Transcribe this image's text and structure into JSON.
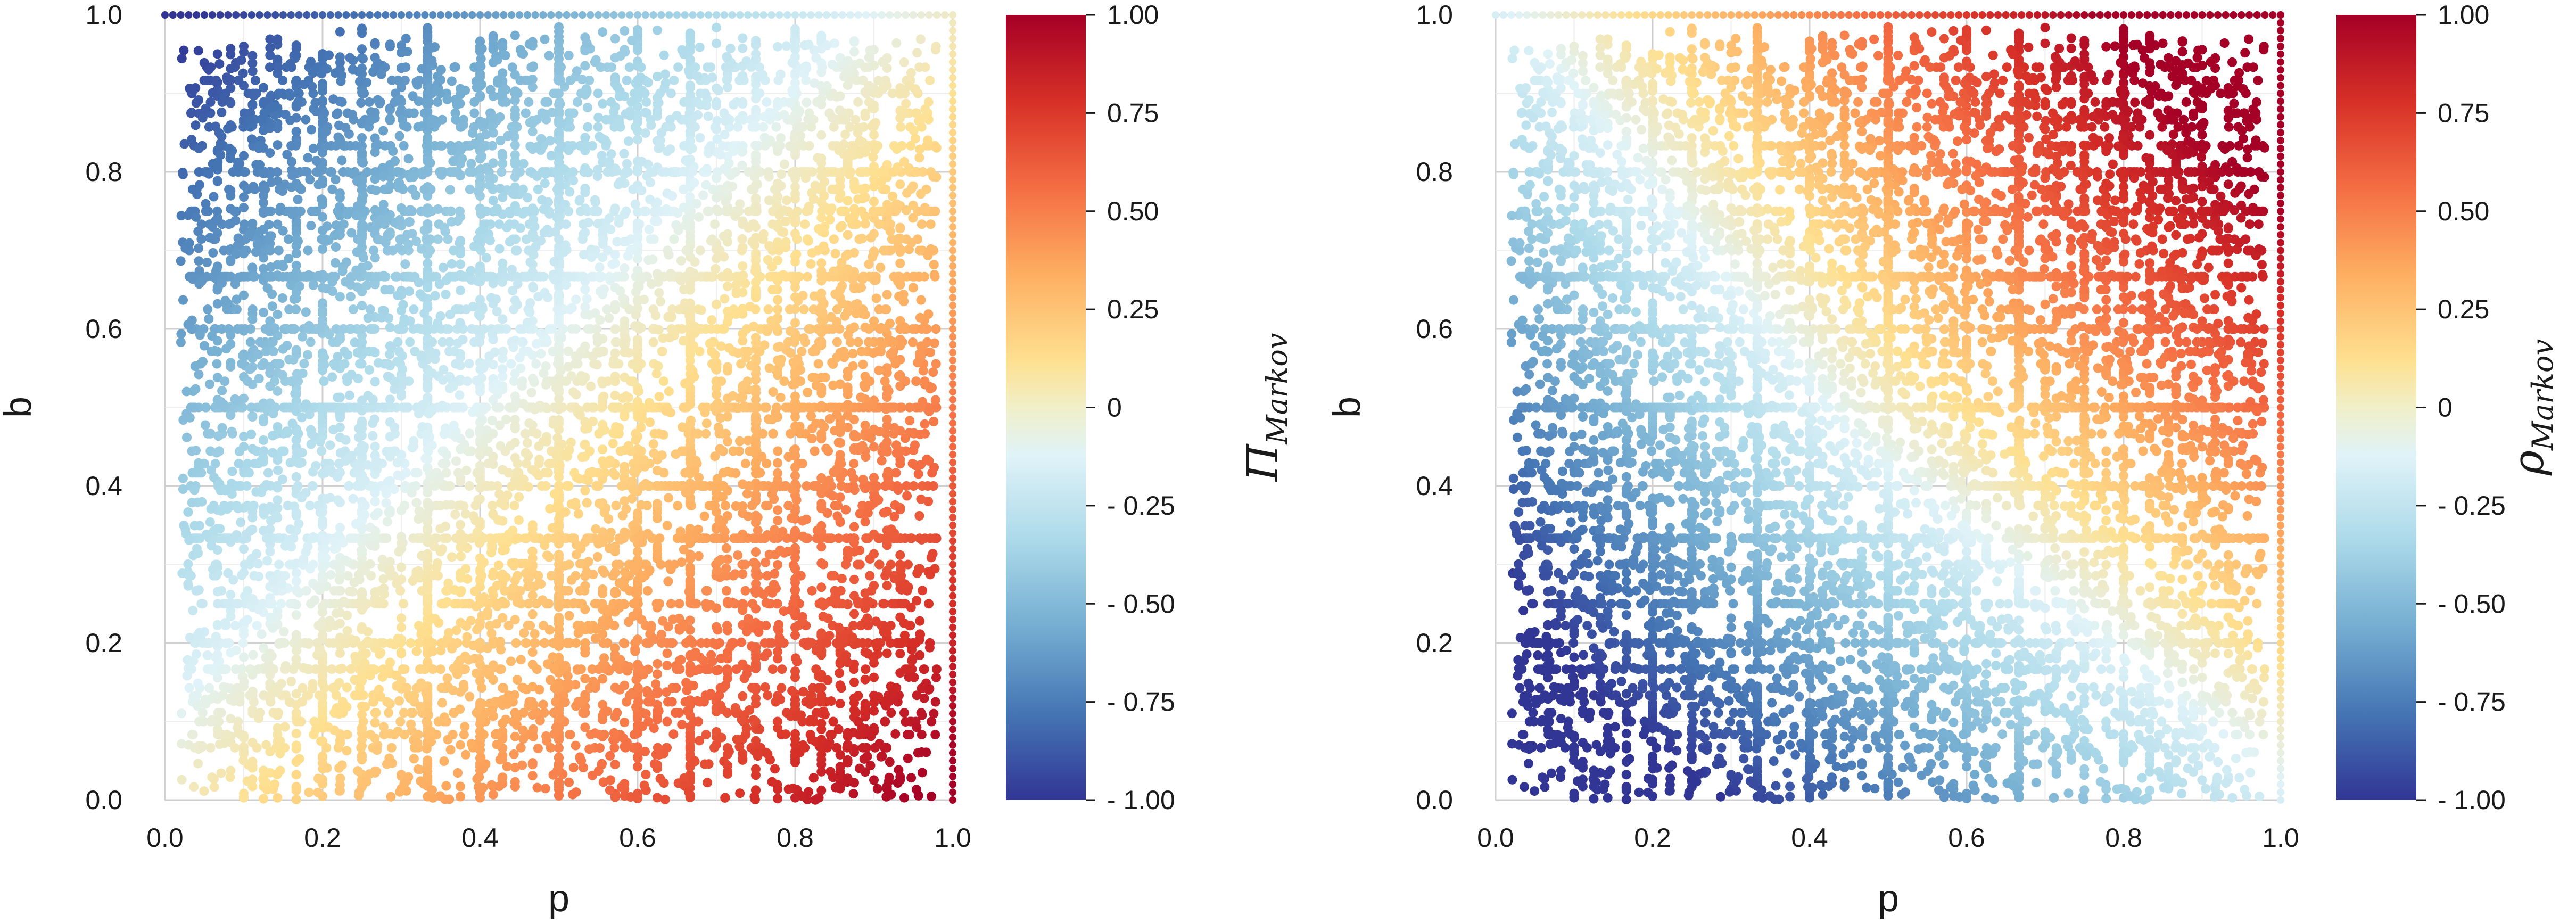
{
  "chart_data": [
    {
      "type": "scatter",
      "title": "",
      "xlabel": "p",
      "ylabel": "b",
      "xlim": [
        0,
        1
      ],
      "ylim": [
        0,
        1
      ],
      "xticks": [
        "0.0",
        "0.2",
        "0.4",
        "0.6",
        "0.8",
        "1.0"
      ],
      "yticks": [
        "0.0",
        "0.2",
        "0.4",
        "0.6",
        "0.8",
        "1.0"
      ],
      "grid": true,
      "colorbar": {
        "label_main": "Π",
        "label_sub": "Markov",
        "range": [
          -1,
          1
        ],
        "ticks": [
          "- 1.00",
          "- 0.75",
          "- 0.50",
          "- 0.25",
          "0",
          "0.25",
          "0.50",
          "0.75",
          "1.00"
        ]
      },
      "color_function": "p - b",
      "anchor_points": [
        {
          "p": 0.15,
          "b": 0.85,
          "value": -0.7
        },
        {
          "p": 0.95,
          "b": 0.2,
          "value": 0.75
        },
        {
          "p": 1.0,
          "b": 0.0,
          "value": 1.0
        },
        {
          "p": 0.5,
          "b": 0.5,
          "value": 0.0
        }
      ]
    },
    {
      "type": "scatter",
      "title": "",
      "xlabel": "p",
      "ylabel": "b",
      "xlim": [
        0,
        1
      ],
      "ylim": [
        0,
        1
      ],
      "xticks": [
        "0.0",
        "0.2",
        "0.4",
        "0.6",
        "0.8",
        "1.0"
      ],
      "yticks": [
        "0.0",
        "0.2",
        "0.4",
        "0.6",
        "0.8",
        "1.0"
      ],
      "grid": true,
      "colorbar": {
        "label_main": "ρ",
        "label_sub": "Markov",
        "range": [
          -1,
          1
        ],
        "ticks": [
          "- 1.00",
          "- 0.75",
          "- 0.50",
          "- 0.25",
          "0",
          "0.25",
          "0.50",
          "0.75",
          "1.00"
        ]
      },
      "color_function": "correlation of p and b",
      "anchor_points": [
        {
          "p": 0.95,
          "b": 0.95,
          "value": 0.95
        },
        {
          "p": 0.1,
          "b": 0.1,
          "value": -0.8
        },
        {
          "p": 0.1,
          "b": 0.85,
          "value": -0.6
        },
        {
          "p": 0.9,
          "b": 0.15,
          "value": -0.55
        },
        {
          "p": 0.5,
          "b": 0.5,
          "value": 0.0
        }
      ]
    }
  ],
  "colormap": [
    "#313695",
    "#4575b4",
    "#74add1",
    "#abd9e9",
    "#e0f3f8",
    "#fee090",
    "#fdae61",
    "#f46d43",
    "#d73027",
    "#a50026"
  ]
}
